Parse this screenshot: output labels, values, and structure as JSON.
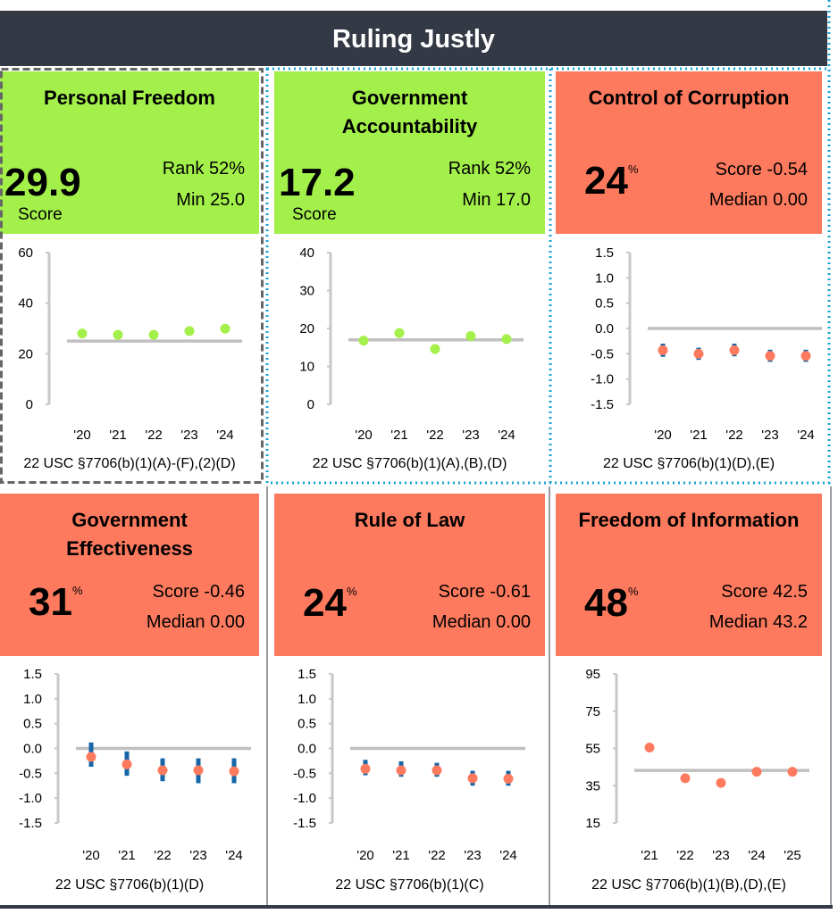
{
  "header": {
    "title": "Ruling Justly"
  },
  "colors": {
    "green": "#a3f04a",
    "red": "#fe7a5e",
    "dot_green": "#a3f04a",
    "dot_red": "#fe7a5e",
    "error_bar": "#1565a8",
    "ref_line": "#c0c0c0",
    "banner": "#333a45"
  },
  "panels": [
    {
      "title_lines": [
        "Personal Freedom"
      ],
      "big": "29.9",
      "big_label": "Score",
      "stat1": "Rank 52%",
      "stat2": "Min 25.0",
      "citation": "22 USC §7706(b)(1)(A)-(F),(2)(D)"
    },
    {
      "title_lines": [
        "Government",
        "Accountability"
      ],
      "big": "17.2",
      "big_label": "Score",
      "stat1": "Rank 52%",
      "stat2": "Min 17.0",
      "citation": "22 USC §7706(b)(1)(A),(B),(D)"
    },
    {
      "title_lines": [
        "Control of Corruption"
      ],
      "big": "24",
      "pct": "%",
      "stat1": "Score -0.54",
      "stat2": "Median 0.00",
      "citation": "22 USC §7706(b)(1)(D),(E)"
    },
    {
      "title_lines": [
        "Government",
        "Effectiveness"
      ],
      "big": "31",
      "pct": "%",
      "stat1": "Score -0.46",
      "stat2": "Median 0.00",
      "citation": "22 USC §7706(b)(1)(D)"
    },
    {
      "title_lines": [
        "Rule of Law"
      ],
      "big": "24",
      "pct": "%",
      "stat1": "Score -0.61",
      "stat2": "Median 0.00",
      "citation": "22 USC §7706(b)(1)(C)"
    },
    {
      "title_lines": [
        "Freedom of Information"
      ],
      "big": "48",
      "pct": "%",
      "stat1": "Score 42.5",
      "stat2": "Median 43.2",
      "citation": "22 USC §7706(b)(1)(B),(D),(E)"
    }
  ],
  "chart_data": [
    {
      "type": "scatter",
      "title": "Personal Freedom",
      "x": [
        "'20",
        "'21",
        "'22",
        "'23",
        "'24"
      ],
      "values": [
        28.0,
        27.5,
        27.5,
        29.0,
        29.9
      ],
      "reference": 25.0,
      "ylim": [
        0,
        60
      ],
      "yticks": [
        "60",
        "40",
        "20",
        "0"
      ],
      "ytick_values": [
        60,
        40,
        20,
        0
      ],
      "color": "green"
    },
    {
      "type": "scatter",
      "title": "Government Accountability",
      "x": [
        "'20",
        "'21",
        "'22",
        "'23",
        "'24"
      ],
      "values": [
        16.8,
        18.8,
        14.6,
        18.0,
        17.2
      ],
      "reference": 17.0,
      "ylim": [
        0,
        40
      ],
      "yticks": [
        "40",
        "30",
        "20",
        "10",
        "0"
      ],
      "ytick_values": [
        40,
        30,
        20,
        10,
        0
      ],
      "color": "green"
    },
    {
      "type": "scatter",
      "title": "Control of Corruption",
      "x": [
        "'20",
        "'21",
        "'22",
        "'23",
        "'24"
      ],
      "values": [
        -0.43,
        -0.5,
        -0.43,
        -0.54,
        -0.54
      ],
      "error_low": [
        -0.56,
        -0.62,
        -0.55,
        -0.66,
        -0.66
      ],
      "error_high": [
        -0.3,
        -0.38,
        -0.3,
        -0.42,
        -0.42
      ],
      "reference": 0.0,
      "ylim": [
        -1.5,
        1.5
      ],
      "yticks": [
        "1.5",
        "1.0",
        "0.5",
        "0.0",
        "-0.5",
        "-1.0",
        "-1.5"
      ],
      "ytick_values": [
        1.5,
        1.0,
        0.5,
        0,
        -0.5,
        -1.0,
        -1.5
      ],
      "color": "red"
    },
    {
      "type": "scatter",
      "title": "Government Effectiveness",
      "x": [
        "'20",
        "'21",
        "'22",
        "'23",
        "'24"
      ],
      "values": [
        -0.17,
        -0.32,
        -0.44,
        -0.44,
        -0.46
      ],
      "error_low": [
        -0.37,
        -0.55,
        -0.66,
        -0.7,
        -0.7
      ],
      "error_high": [
        0.12,
        -0.06,
        -0.2,
        -0.2,
        -0.2
      ],
      "reference": 0.0,
      "ylim": [
        -1.5,
        1.5
      ],
      "yticks": [
        "1.5",
        "1.0",
        "0.5",
        "0.0",
        "-0.5",
        "-1.0",
        "-1.5"
      ],
      "ytick_values": [
        1.5,
        1.0,
        0.5,
        0,
        -0.5,
        -1.0,
        -1.5
      ],
      "color": "red"
    },
    {
      "type": "scatter",
      "title": "Rule of Law",
      "x": [
        "'20",
        "'21",
        "'22",
        "'23",
        "'24"
      ],
      "values": [
        -0.41,
        -0.44,
        -0.44,
        -0.6,
        -0.61
      ],
      "error_low": [
        -0.54,
        -0.57,
        -0.57,
        -0.75,
        -0.75
      ],
      "error_high": [
        -0.23,
        -0.26,
        -0.29,
        -0.45,
        -0.45
      ],
      "reference": 0.0,
      "ylim": [
        -1.5,
        1.5
      ],
      "yticks": [
        "1.5",
        "1.0",
        "0.5",
        "0.0",
        "-0.5",
        "-1.0",
        "-1.5"
      ],
      "ytick_values": [
        1.5,
        1.0,
        0.5,
        0,
        -0.5,
        -1.0,
        -1.5
      ],
      "color": "red"
    },
    {
      "type": "scatter",
      "title": "Freedom of Information",
      "x": [
        "'21",
        "'22",
        "'23",
        "'24",
        "'25"
      ],
      "values": [
        55.5,
        39.0,
        36.5,
        42.5,
        42.5
      ],
      "reference": 43.2,
      "ylim": [
        15,
        95
      ],
      "yticks": [
        "95",
        "75",
        "55",
        "35",
        "15"
      ],
      "ytick_values": [
        95,
        75,
        55,
        35,
        15
      ],
      "color": "red"
    }
  ]
}
